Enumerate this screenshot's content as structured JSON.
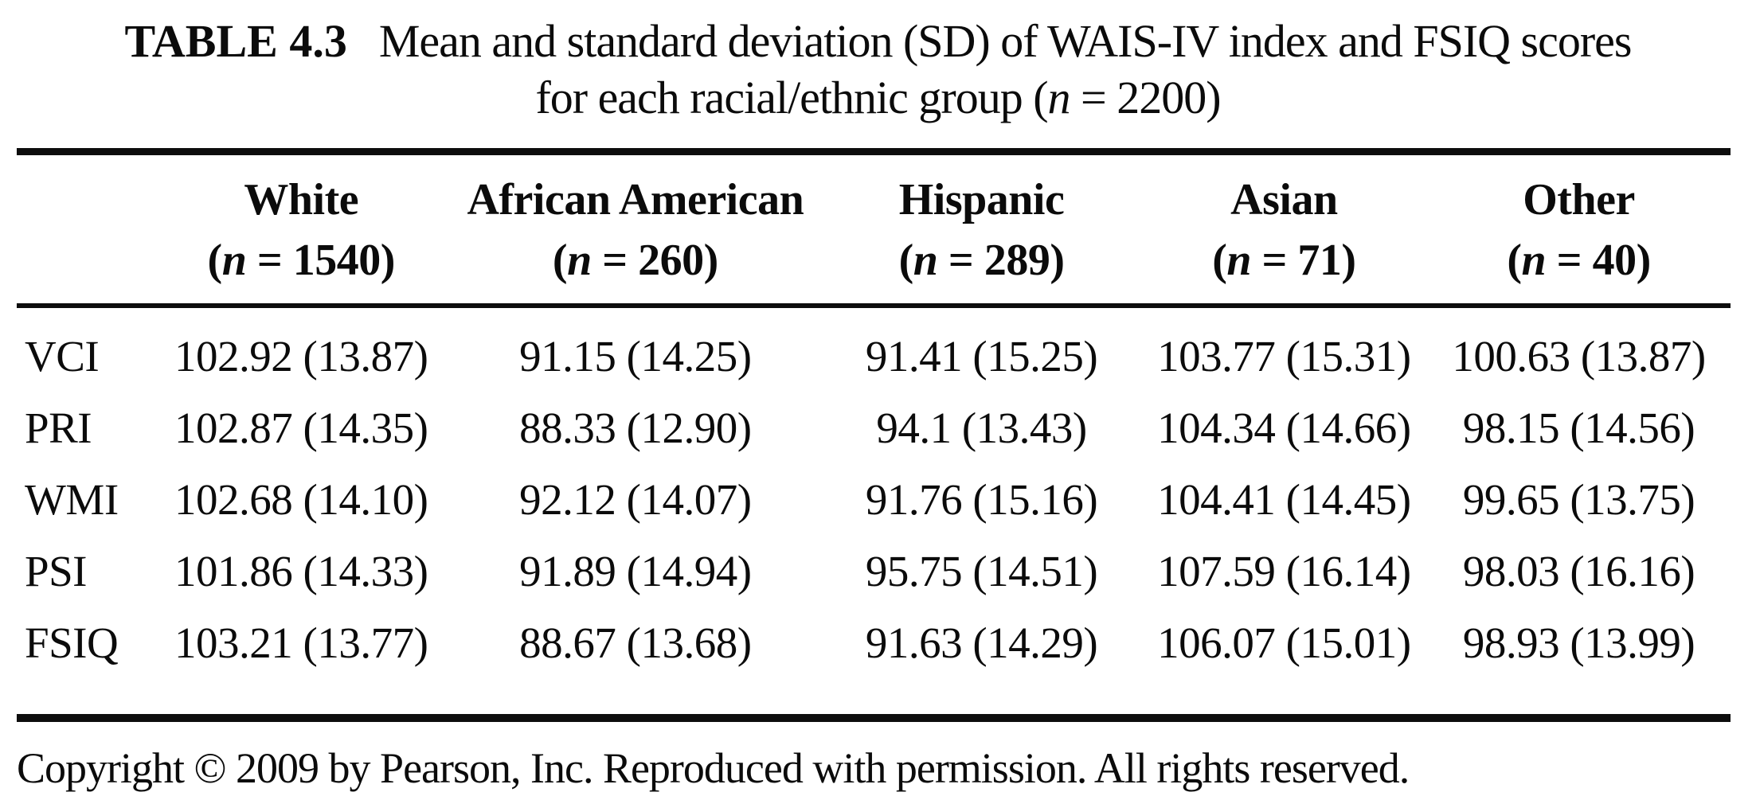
{
  "title": {
    "label": "TABLE 4.3",
    "line1": "Mean and standard deviation (SD) of WAIS-IV index and FSIQ scores",
    "line2": "for each racial/ethnic group (n = 2200)"
  },
  "table": {
    "columns": [
      {
        "name": "White",
        "n": "(n = 1540)"
      },
      {
        "name": "African American",
        "n": "(n = 260)"
      },
      {
        "name": "Hispanic",
        "n": "(n = 289)"
      },
      {
        "name": "Asian",
        "n": "(n = 71)"
      },
      {
        "name": "Other",
        "n": "(n = 40)"
      }
    ],
    "rows": [
      {
        "label": "VCI",
        "values": [
          "102.92 (13.87)",
          "91.15 (14.25)",
          "91.41 (15.25)",
          "103.77 (15.31)",
          "100.63 (13.87)"
        ]
      },
      {
        "label": "PRI",
        "values": [
          "102.87 (14.35)",
          "88.33 (12.90)",
          "94.1 (13.43)",
          "104.34 (14.66)",
          "98.15 (14.56)"
        ]
      },
      {
        "label": "WMI",
        "values": [
          "102.68 (14.10)",
          "92.12 (14.07)",
          "91.76 (15.16)",
          "104.41 (14.45)",
          "99.65 (13.75)"
        ]
      },
      {
        "label": "PSI",
        "values": [
          "101.86 (14.33)",
          "91.89 (14.94)",
          "95.75 (14.51)",
          "107.59 (16.14)",
          "98.03 (16.16)"
        ]
      },
      {
        "label": "FSIQ",
        "values": [
          "103.21 (13.77)",
          "88.67 (13.68)",
          "91.63 (14.29)",
          "106.07 (15.01)",
          "98.93 (13.99)"
        ]
      }
    ]
  },
  "footer": {
    "copyright": "Copyright © 2009 by Pearson, Inc. Reproduced with permission. All rights reserved."
  },
  "colors": {
    "text": "#0b0b0b",
    "background": "#ffffff",
    "rule": "#0d0d0d"
  }
}
